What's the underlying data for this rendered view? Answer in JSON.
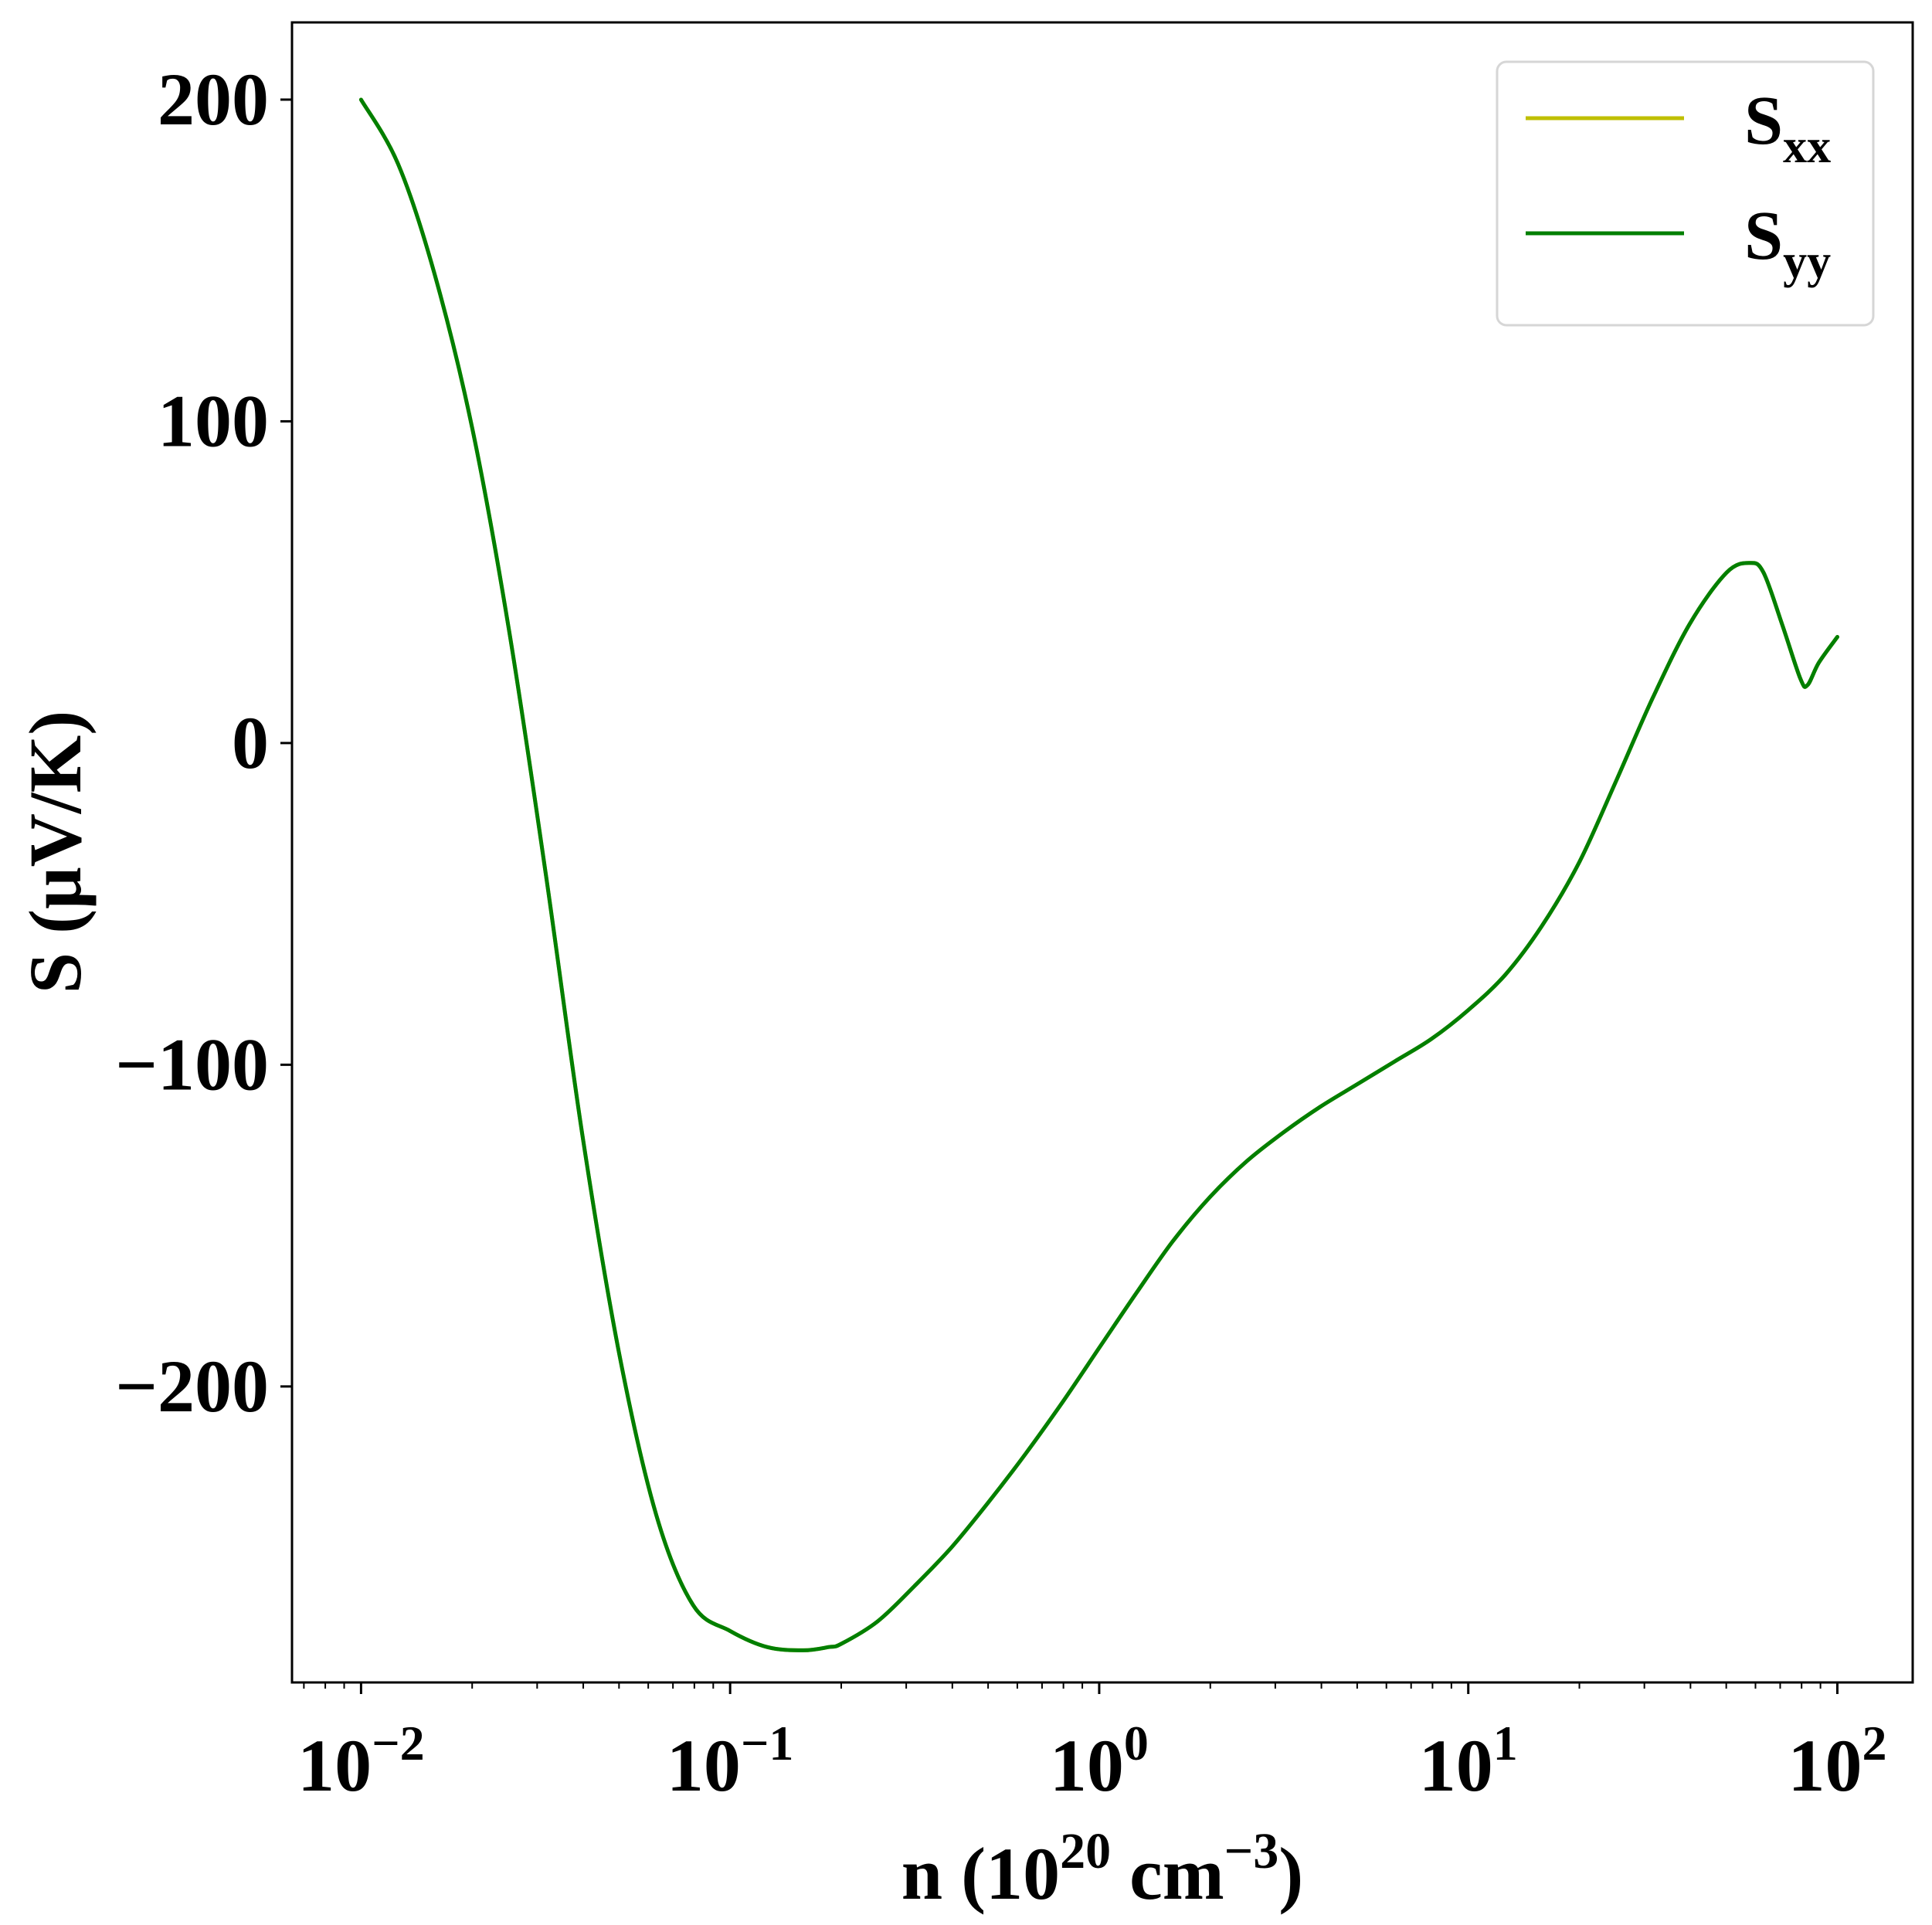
{
  "chart_data": {
    "type": "line",
    "x_scale": "log",
    "xlabel": {
      "prefix": "n (10",
      "exp1": "20",
      "middle": " cm",
      "exp2": "−3",
      "suffix": ")"
    },
    "ylabel": "S (μV/K)",
    "xlim": [
      0.0065,
      160
    ],
    "ylim": [
      -292,
      224
    ],
    "x_ticks": [
      {
        "value": 0.01,
        "base": "10",
        "exp": "−2"
      },
      {
        "value": 0.1,
        "base": "10",
        "exp": "−1"
      },
      {
        "value": 1,
        "base": "10",
        "exp": "0"
      },
      {
        "value": 10,
        "base": "10",
        "exp": "1"
      },
      {
        "value": 100,
        "base": "10",
        "exp": "2"
      }
    ],
    "y_ticks": [
      {
        "value": 200,
        "label": "200"
      },
      {
        "value": 100,
        "label": "100"
      },
      {
        "value": 0,
        "label": "0"
      },
      {
        "value": -100,
        "label": "−100"
      },
      {
        "value": -200,
        "label": "−200"
      }
    ],
    "grid": false,
    "legend_position": "top-right",
    "series": [
      {
        "name": "S",
        "subscript": "xx",
        "color": "#bfbf00",
        "x": [
          0.01,
          0.0126,
          0.0158,
          0.02,
          0.0251,
          0.0316,
          0.0398,
          0.0501,
          0.0631,
          0.0794,
          0.1,
          0.126,
          0.158,
          0.185,
          0.2,
          0.251,
          0.316,
          0.398,
          0.501,
          0.631,
          0.794,
          1.0,
          1.26,
          1.58,
          2.0,
          2.51,
          3.16,
          3.98,
          5.01,
          6.31,
          7.94,
          10.0,
          12.6,
          15.8,
          20.0,
          25.1,
          31.6,
          39.8,
          50.1,
          58.0,
          63.1,
          70.8,
          79.4,
          83.0,
          89.1,
          100.0
        ],
        "y": [
          200,
          180,
          146,
          98,
          36,
          -40,
          -122,
          -190,
          -240,
          -268,
          -276,
          -281,
          -282,
          -281,
          -280,
          -273,
          -262,
          -250,
          -236,
          -221,
          -205,
          -188,
          -171,
          -155,
          -141,
          -130,
          -121,
          -113,
          -106,
          -99,
          -92,
          -83,
          -72,
          -57,
          -37,
          -12,
          14,
          37,
          53,
          56,
          53,
          37,
          20,
          18,
          25,
          33
        ]
      },
      {
        "name": "S",
        "subscript": "yy",
        "color": "#007f00",
        "x": [
          0.01,
          0.0126,
          0.0158,
          0.02,
          0.0251,
          0.0316,
          0.0398,
          0.0501,
          0.0631,
          0.0794,
          0.1,
          0.126,
          0.158,
          0.185,
          0.2,
          0.251,
          0.316,
          0.398,
          0.501,
          0.631,
          0.794,
          1.0,
          1.26,
          1.58,
          2.0,
          2.51,
          3.16,
          3.98,
          5.01,
          6.31,
          7.94,
          10.0,
          12.6,
          15.8,
          20.0,
          25.1,
          31.6,
          39.8,
          50.1,
          58.0,
          63.1,
          70.8,
          79.4,
          83.0,
          89.1,
          100.0
        ],
        "y": [
          200,
          180,
          146,
          98,
          36,
          -40,
          -122,
          -190,
          -240,
          -268,
          -276,
          -281,
          -282,
          -281,
          -280,
          -273,
          -262,
          -250,
          -236,
          -221,
          -205,
          -188,
          -171,
          -155,
          -141,
          -130,
          -121,
          -113,
          -106,
          -99,
          -92,
          -83,
          -72,
          -57,
          -37,
          -12,
          14,
          37,
          53,
          56,
          53,
          37,
          20,
          18,
          25,
          33
        ]
      }
    ]
  }
}
